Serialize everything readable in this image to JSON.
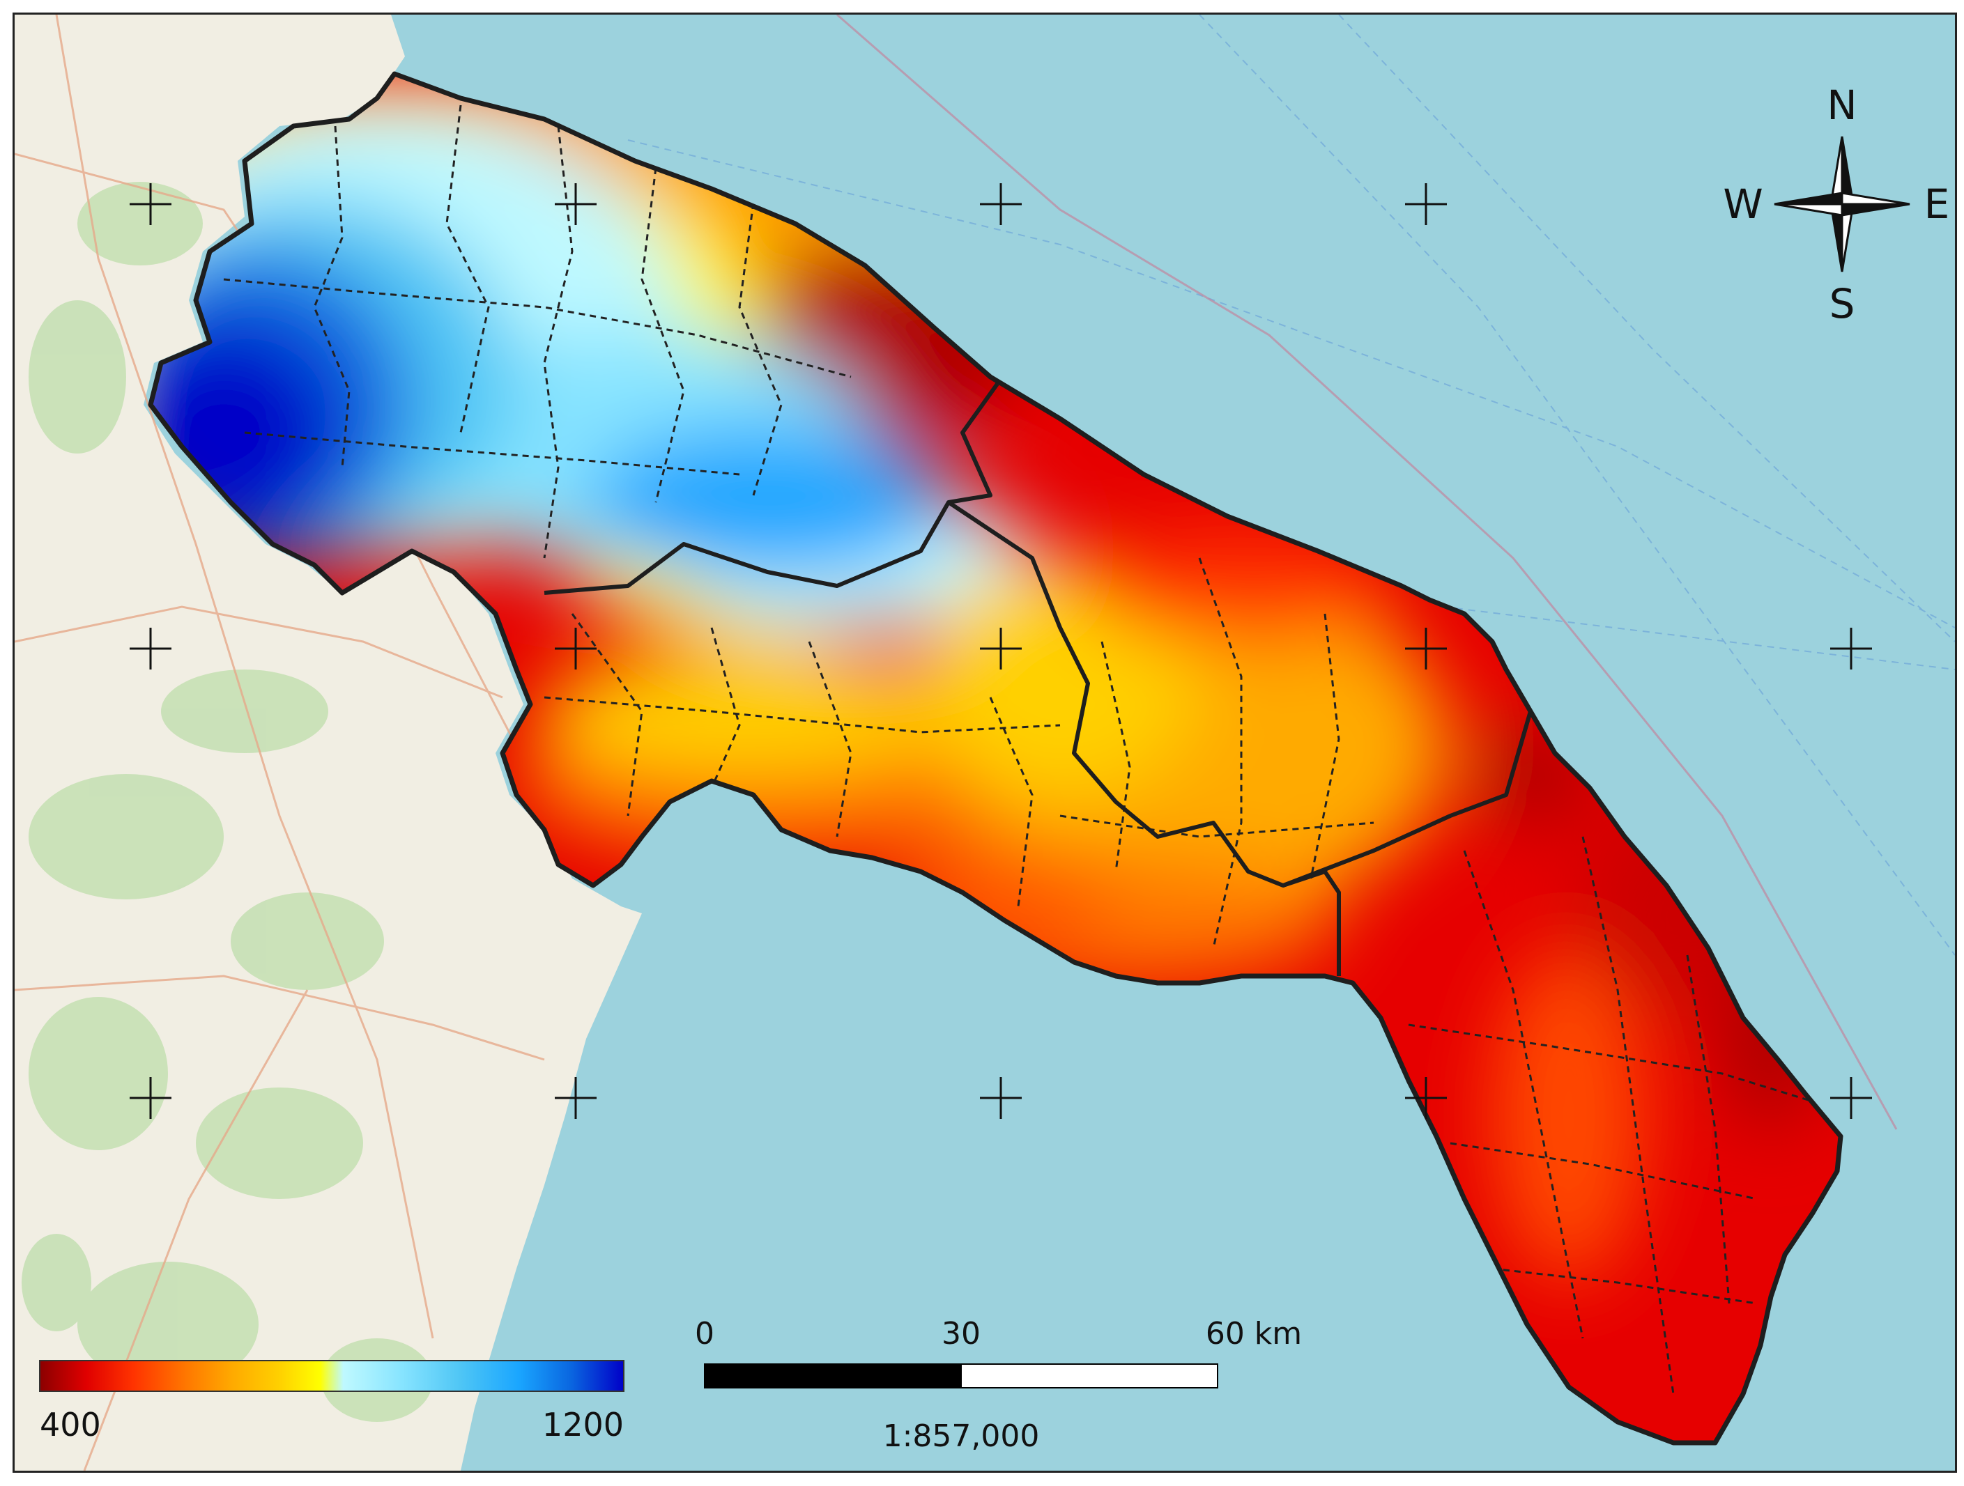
{
  "compass": {
    "north": "N",
    "south": "S",
    "east": "E",
    "west": "W"
  },
  "legend": {
    "min_label": "400",
    "max_label": "1200",
    "colors": [
      "#8b0000",
      "#e00000",
      "#ff3300",
      "#ff7700",
      "#ffaa00",
      "#ffd000",
      "#ffff00",
      "#bff9ff",
      "#87e4ff",
      "#4fc6f5",
      "#1aa6ff",
      "#0a66e0",
      "#0000c8"
    ]
  },
  "scale_bar": {
    "tick_0": "0",
    "tick_mid": "30",
    "tick_end": "60 km",
    "ratio": "1:857,000"
  },
  "colors": {
    "sea": "#9cd2dd",
    "land": "#f1eee3",
    "frame": "#222222",
    "boundary": "#222222"
  }
}
